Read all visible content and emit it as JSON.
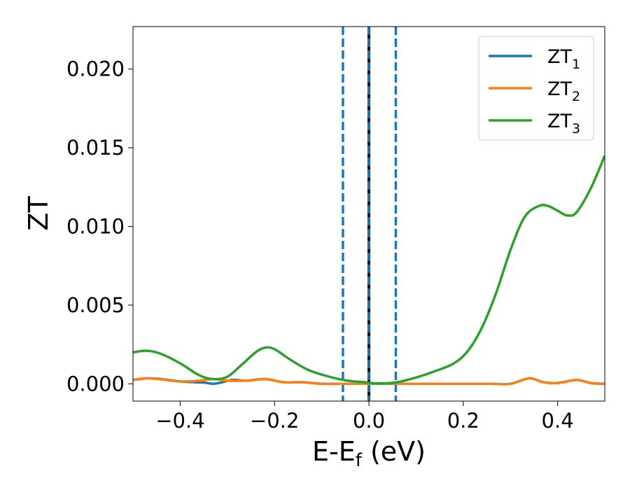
{
  "chart_data": {
    "type": "line",
    "xlabel": "E-E",
    "xlabel_sub": "f",
    "xlabel_unit": " (eV)",
    "ylabel": "ZT",
    "xlim": [
      -0.5,
      0.5
    ],
    "ylim": [
      -0.0011,
      0.0227
    ],
    "xticks": [
      -0.4,
      -0.2,
      0.0,
      0.2,
      0.4
    ],
    "xtick_labels": [
      "−0.4",
      "−0.2",
      "0.0",
      "0.2",
      "0.4"
    ],
    "yticks": [
      0.0,
      0.005,
      0.01,
      0.015,
      0.02
    ],
    "ytick_labels": [
      "0.000",
      "0.005",
      "0.010",
      "0.015",
      "0.020"
    ],
    "grid": false,
    "legend_position": "top-right",
    "vlines": [
      {
        "x": -0.055,
        "style": "dashed",
        "color": "#1f77b4"
      },
      {
        "x": 0.0,
        "style": "solid",
        "color": "#000000"
      },
      {
        "x": 0.0,
        "style": "dashed",
        "color": "#1f77b4"
      },
      {
        "x": 0.057,
        "style": "dashed",
        "color": "#1f77b4"
      }
    ],
    "series": [
      {
        "name": "ZT",
        "sub": "1",
        "color": "#1f77b4",
        "x": [
          -0.5,
          -0.47,
          -0.44,
          -0.4,
          -0.37,
          -0.35,
          -0.33,
          -0.31,
          -0.29,
          -0.26,
          -0.22,
          -0.18,
          -0.14,
          -0.1,
          -0.06,
          -0.02,
          0.02,
          0.06,
          0.1,
          0.14,
          0.18,
          0.22,
          0.26,
          0.3,
          0.34,
          0.37,
          0.4,
          0.44,
          0.47,
          0.5
        ],
        "y": [
          0.00025,
          0.00035,
          0.0003,
          0.00015,
          0.0001,
          8e-05,
          0.0,
          0.0001,
          0.00025,
          0.0002,
          0.0003,
          0.0001,
          0.0001,
          0.0,
          0.0,
          0.0,
          0.0,
          0.0,
          0.0,
          0.0,
          0.0,
          0.0,
          0.0,
          0.0,
          0.00035,
          0.0001,
          5e-05,
          0.00025,
          5e-05,
          0.0
        ]
      },
      {
        "name": "ZT",
        "sub": "2",
        "color": "#ff7f0e",
        "x": [
          -0.5,
          -0.47,
          -0.44,
          -0.4,
          -0.36,
          -0.33,
          -0.3,
          -0.26,
          -0.22,
          -0.18,
          -0.14,
          -0.1,
          -0.06,
          -0.02,
          0.02,
          0.06,
          0.1,
          0.14,
          0.18,
          0.22,
          0.26,
          0.3,
          0.34,
          0.37,
          0.4,
          0.44,
          0.47,
          0.5
        ],
        "y": [
          0.00025,
          0.00035,
          0.00028,
          0.00015,
          0.0002,
          0.0003,
          0.0002,
          0.0002,
          0.0003,
          0.0001,
          0.0001,
          0.0,
          0.0,
          0.0,
          0.0,
          0.0,
          0.0,
          0.0,
          0.0,
          0.0,
          0.0,
          0.0,
          0.00035,
          0.0001,
          5e-05,
          0.00025,
          5e-05,
          0.0
        ]
      },
      {
        "name": "ZT",
        "sub": "3",
        "color": "#2ca02c",
        "x": [
          -0.5,
          -0.47,
          -0.44,
          -0.4,
          -0.36,
          -0.33,
          -0.3,
          -0.27,
          -0.24,
          -0.22,
          -0.2,
          -0.17,
          -0.13,
          -0.09,
          -0.05,
          -0.01,
          0.02,
          0.06,
          0.1,
          0.14,
          0.18,
          0.21,
          0.24,
          0.27,
          0.3,
          0.33,
          0.36,
          0.38,
          0.4,
          0.42,
          0.44,
          0.47,
          0.5
        ],
        "y": [
          0.002,
          0.0021,
          0.0019,
          0.0013,
          0.00055,
          0.0003,
          0.00045,
          0.0012,
          0.002,
          0.0023,
          0.0022,
          0.0016,
          0.0009,
          0.0005,
          0.00022,
          0.0001,
          2e-05,
          0.0001,
          0.0004,
          0.0008,
          0.0013,
          0.0021,
          0.0036,
          0.0058,
          0.0085,
          0.0106,
          0.0113,
          0.0113,
          0.011,
          0.0107,
          0.0109,
          0.0124,
          0.0145
        ]
      }
    ]
  }
}
